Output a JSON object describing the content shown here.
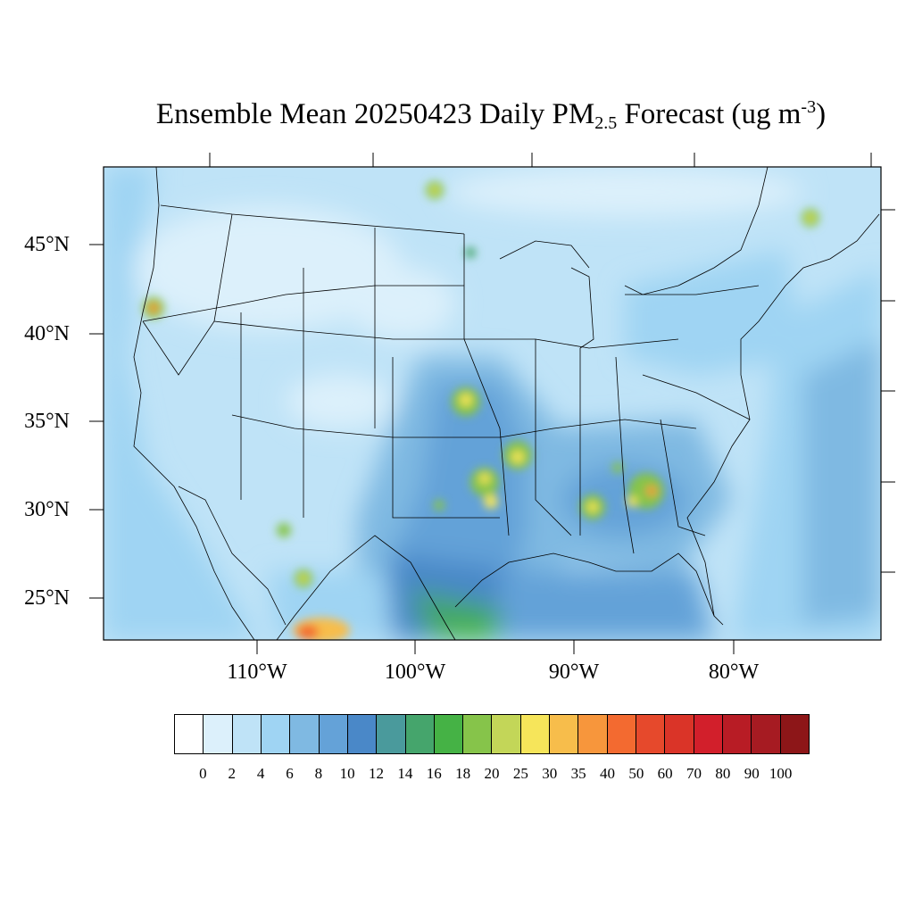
{
  "title": {
    "prefix": "Ensemble Mean 20250423 Daily PM",
    "subscript": "2.5",
    "middle": " Forecast (ug m",
    "superscript": "-3",
    "suffix": ")"
  },
  "lat_labels": [
    "45°N",
    "40°N",
    "35°N",
    "30°N",
    "25°N"
  ],
  "lon_labels": [
    "110°W",
    "100°W",
    "90°W",
    "80°W"
  ],
  "colorbar": {
    "levels": [
      "0",
      "2",
      "4",
      "6",
      "8",
      "10",
      "12",
      "14",
      "16",
      "18",
      "20",
      "25",
      "30",
      "35",
      "40",
      "50",
      "60",
      "70",
      "80",
      "90",
      "100"
    ],
    "colors": [
      "#ffffff",
      "#dcf0fb",
      "#bfe3f7",
      "#9fd4f3",
      "#7fb9e2",
      "#64a2d8",
      "#4a88c8",
      "#4a9a9c",
      "#45a56c",
      "#45b245",
      "#86c44a",
      "#c3d658",
      "#f6e55a",
      "#f7bd4b",
      "#f7963c",
      "#f36a30",
      "#e6492c",
      "#da3428",
      "#d21f2b",
      "#b81c25",
      "#a61b22",
      "#8d1618"
    ]
  },
  "legend": {
    "ticks_top": "tick-marks"
  }
}
